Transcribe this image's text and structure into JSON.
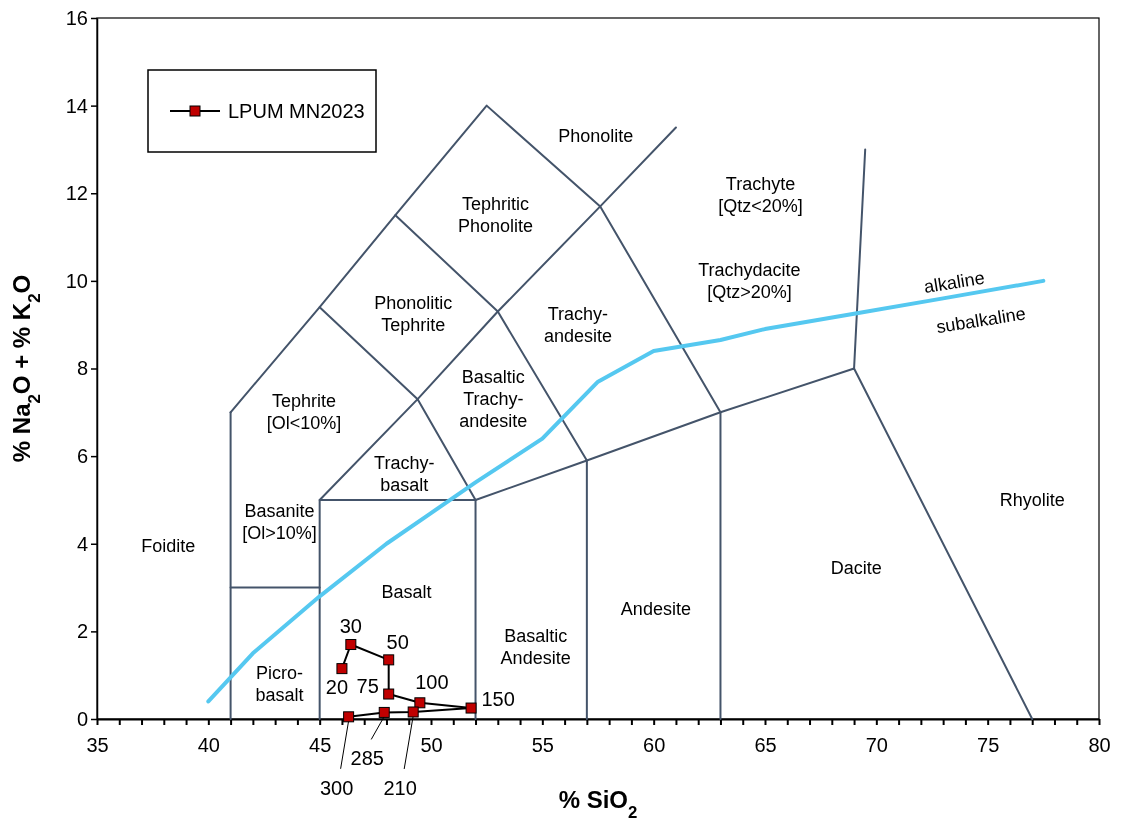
{
  "chart_data": {
    "type": "line",
    "xlabel": "% SiO$_{2}$",
    "ylabel": "% Na$_{2}$O + % K$_{2}$O",
    "xlim": [
      35,
      80
    ],
    "ylim": [
      0,
      16
    ],
    "xticks": [
      35,
      {
        "value": 36,
        "label": null
      },
      {
        "value": 37,
        "label": null
      },
      {
        "value": 38,
        "label": null
      },
      {
        "value": 39,
        "label": null
      },
      40,
      {
        "value": 41,
        "label": null
      },
      {
        "value": 42,
        "label": null
      },
      {
        "value": 43,
        "label": null
      },
      {
        "value": 44,
        "label": null
      },
      45,
      {
        "value": 46,
        "label": null
      },
      {
        "value": 47,
        "label": null
      },
      {
        "value": 48,
        "label": null
      },
      {
        "value": 49,
        "label": null
      },
      50,
      {
        "value": 51,
        "label": null
      },
      {
        "value": 52,
        "label": null
      },
      {
        "value": 53,
        "label": null
      },
      {
        "value": 54,
        "label": null
      },
      55,
      {
        "value": 56,
        "label": null
      },
      {
        "value": 57,
        "label": null
      },
      {
        "value": 58,
        "label": null
      },
      {
        "value": 59,
        "label": null
      },
      60,
      {
        "value": 61,
        "label": null
      },
      {
        "value": 62,
        "label": null
      },
      {
        "value": 63,
        "label": null
      },
      {
        "value": 64,
        "label": null
      },
      65,
      {
        "value": 66,
        "label": null
      },
      {
        "value": 67,
        "label": null
      },
      {
        "value": 68,
        "label": null
      },
      {
        "value": 69,
        "label": null
      },
      70,
      {
        "value": 71,
        "label": null
      },
      {
        "value": 72,
        "label": null
      },
      {
        "value": 73,
        "label": null
      },
      {
        "value": 74,
        "label": null
      },
      75,
      {
        "value": 76,
        "label": null
      },
      {
        "value": 77,
        "label": null
      },
      {
        "value": 78,
        "label": null
      },
      {
        "value": 79,
        "label": null
      },
      80
    ],
    "yticks": [
      0,
      2,
      4,
      6,
      8,
      10,
      12,
      14,
      16
    ],
    "grid": false,
    "legend": "top left",
    "series": [
      {
        "color": "#44546a",
        "marker": "none",
        "x": [
          41,
          41
        ],
        "values": [
          0,
          7
        ]
      },
      {
        "color": "#44546a",
        "marker": "none",
        "x": [
          41,
          45,
          48.4,
          52.5,
          57.6,
          63
        ],
        "values": [
          7,
          9.4,
          11.5,
          14,
          11.7,
          7
        ]
      },
      {
        "color": "#44546a",
        "marker": "none",
        "x": [
          41,
          45
        ],
        "values": [
          3,
          3
        ]
      },
      {
        "color": "#44546a",
        "marker": "none",
        "x": [
          45,
          45,
          52,
          52
        ],
        "values": [
          0,
          5,
          5,
          0
        ]
      },
      {
        "color": "#44546a",
        "marker": "none",
        "x": [
          45,
          49.4,
          52
        ],
        "values": [
          5,
          7.3,
          5
        ]
      },
      {
        "color": "#44546a",
        "marker": "none",
        "x": [
          45,
          49.4
        ],
        "values": [
          9.4,
          7.3
        ]
      },
      {
        "color": "#44546a",
        "marker": "none",
        "x": [
          48.4,
          53,
          57
        ],
        "values": [
          11.5,
          9.3,
          5.9
        ]
      },
      {
        "color": "#44546a",
        "marker": "none",
        "x": [
          49.4,
          53,
          57.6,
          61
        ],
        "values": [
          7.3,
          9.3,
          11.7,
          13.5
        ]
      },
      {
        "color": "#44546a",
        "marker": "none",
        "x": [
          52,
          57,
          63,
          69,
          77
        ],
        "values": [
          5,
          5.9,
          7,
          8,
          0
        ]
      },
      {
        "color": "#44546a",
        "marker": "none",
        "x": [
          57,
          57
        ],
        "values": [
          0,
          5.9
        ]
      },
      {
        "color": "#44546a",
        "marker": "none",
        "x": [
          63,
          63
        ],
        "values": [
          0,
          7
        ]
      },
      {
        "color": "#44546a",
        "marker": "none",
        "x": [
          69,
          69.5
        ],
        "values": [
          8,
          13
        ]
      },
      {
        "color": "#55c8f0",
        "marker": "none",
        "x": [
          40,
          42,
          45,
          48,
          50,
          52,
          55,
          57.5,
          60,
          63,
          65,
          69,
          73,
          77.5
        ],
        "values": [
          0.4,
          1.5,
          2.8,
          4.0,
          4.7,
          5.4,
          6.4,
          7.7,
          8.4,
          8.65,
          8.9,
          9.25,
          9.6,
          10
        ]
      },
      {
        "name": "LPUM MN2023",
        "color": "#c00000",
        "marker": "square",
        "x": [
          46.0,
          46.4,
          48.1,
          48.1,
          49.5,
          51.8,
          49.2,
          47.9,
          46.3
        ],
        "values": [
          1.15,
          1.7,
          1.35,
          0.57,
          0.37,
          0.25,
          0.16,
          0.15,
          0.05
        ]
      }
    ],
    "annotations": [
      "Phonolite",
      "Tephritic\nPhonolite",
      "Trachyte\n[Qtz<20%]",
      "Trachydacite\n[Qtz>20%]",
      {
        "text": "alkaline",
        "x": 73.5,
        "y": 9.6
      },
      "subalkaline",
      "Phonolitic\nTephrite",
      "Trachy-\nandesite",
      "Tephrite\n[Ol<10%]",
      "Basaltic\nTrachy-\nandesite",
      "Trachy-\nbasalt",
      "Basanite\n[Ol>10%]",
      "Foidite",
      "Basalt",
      "Basaltic\nAndesite",
      "Andesite",
      "Dacite",
      "Rhyolite",
      "Picro-\nbasalt",
      {
        "text": "20",
        "x": 46.0,
        "y": 1.15
      },
      {
        "text": "30",
        "x": 46.4,
        "y": 1.7
      },
      {
        "text": "50",
        "x": 48.1,
        "y": 1.35
      },
      {
        "text": "75",
        "x": 48.1,
        "y": 0.57
      },
      {
        "text": "100",
        "x": 49.5,
        "y": 0.37
      },
      {
        "text": "150",
        "x": 51.8,
        "y": 0.25
      },
      {
        "text": "210",
        "x": 49.2,
        "y": 0.16
      },
      {
        "text": "285",
        "x": 47.9,
        "y": 0.15
      },
      {
        "text": "300",
        "x": 46.3,
        "y": 0.05
      }
    ]
  }
}
